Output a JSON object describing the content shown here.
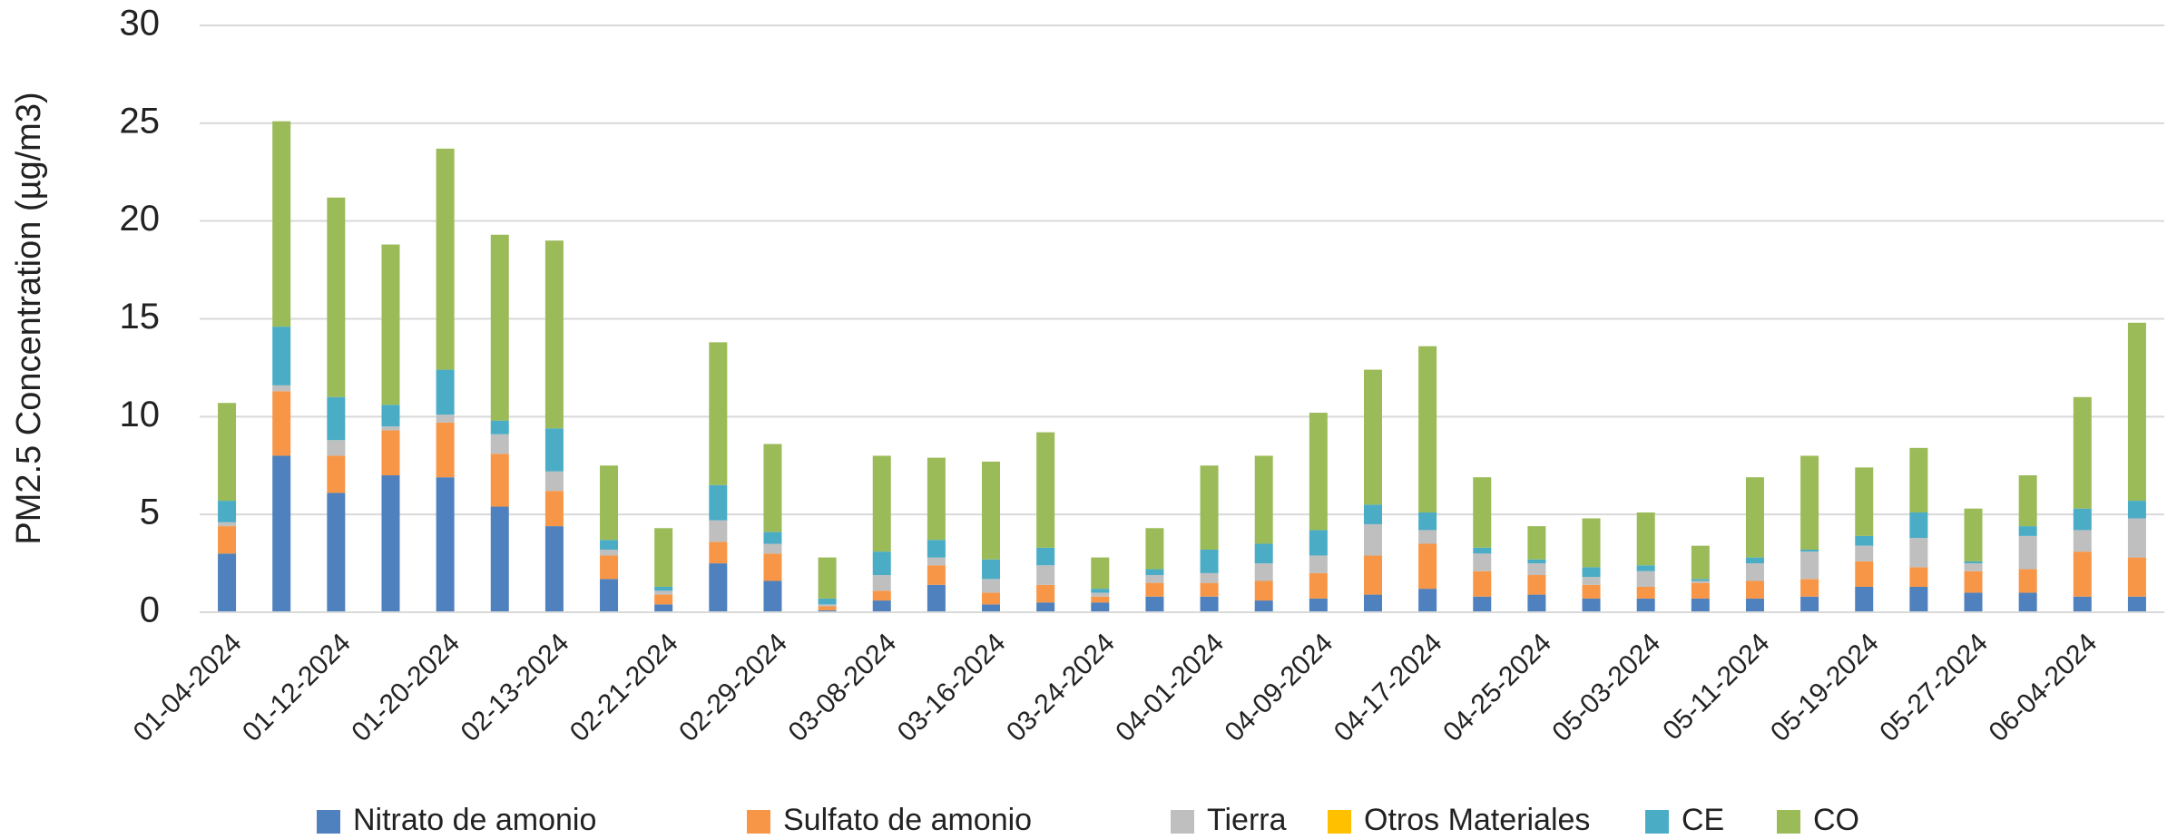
{
  "chart_data": {
    "type": "stacked_bar",
    "y_label": "PM2.5 Concentration (µg/m3)",
    "categories": [
      "01-04-2024",
      null,
      "01-12-2024",
      null,
      "01-20-2024",
      null,
      "02-13-2024",
      null,
      "02-21-2024",
      null,
      "02-29-2024",
      null,
      "03-08-2024",
      null,
      "03-16-2024",
      null,
      "03-24-2024",
      null,
      "04-01-2024",
      null,
      "04-09-2024",
      null,
      "04-17-2024",
      null,
      "04-25-2024",
      null,
      "05-03-2024",
      null,
      "05-11-2024",
      null,
      "05-19-2024",
      null,
      "05-27-2024",
      null,
      "06-04-2024",
      null
    ],
    "series": [
      {
        "name": "Nitrato de amonio",
        "color": "#4e81bd",
        "values": [
          3.0,
          8.0,
          6.1,
          7.0,
          6.9,
          5.4,
          4.4,
          1.7,
          0.4,
          2.5,
          1.6,
          0.1,
          0.6,
          1.4,
          0.4,
          0.5,
          0.5,
          0.8,
          0.8,
          0.6,
          0.7,
          0.9,
          1.2,
          0.8,
          0.9,
          0.7,
          0.7,
          0.7,
          0.7,
          0.8,
          1.3,
          1.3,
          1.0,
          1.0,
          0.8,
          0.8
        ]
      },
      {
        "name": "Sulfato de amonio",
        "color": "#f79646",
        "values": [
          1.4,
          3.3,
          1.9,
          2.3,
          2.8,
          2.7,
          1.8,
          1.2,
          0.5,
          1.1,
          1.4,
          0.2,
          0.5,
          1.0,
          0.6,
          0.9,
          0.3,
          0.7,
          0.7,
          1.0,
          1.3,
          2.0,
          2.3,
          1.3,
          1.0,
          0.7,
          0.6,
          0.8,
          0.9,
          0.9,
          1.3,
          1.0,
          1.1,
          1.2,
          2.3,
          2.0
        ]
      },
      {
        "name": "Tierra",
        "color": "#bfbfbf",
        "values": [
          0.2,
          0.3,
          0.8,
          0.2,
          0.4,
          1.0,
          1.0,
          0.3,
          0.2,
          1.1,
          0.5,
          0.1,
          0.8,
          0.4,
          0.7,
          1.0,
          0.2,
          0.4,
          0.5,
          0.9,
          0.9,
          1.6,
          0.7,
          0.9,
          0.6,
          0.4,
          0.8,
          0.1,
          0.9,
          1.4,
          0.8,
          1.5,
          0.4,
          1.7,
          1.1,
          2.0
        ]
      },
      {
        "name": "Otros Materiales",
        "color": "#ffc000",
        "values": [
          0,
          0,
          0,
          0,
          0,
          0,
          0,
          0,
          0,
          0,
          0,
          0,
          0,
          0,
          0,
          0,
          0,
          0,
          0,
          0,
          0,
          0,
          0,
          0,
          0,
          0,
          0,
          0,
          0,
          0,
          0,
          0,
          0,
          0,
          0,
          0
        ]
      },
      {
        "name": "CE",
        "color": "#4bacc6",
        "values": [
          1.1,
          3.0,
          2.2,
          1.1,
          2.3,
          0.7,
          2.2,
          0.5,
          0.2,
          1.8,
          0.6,
          0.3,
          1.2,
          0.9,
          1.0,
          0.9,
          0.2,
          0.3,
          1.2,
          1.0,
          1.3,
          1.0,
          0.9,
          0.3,
          0.2,
          0.5,
          0.3,
          0.1,
          0.3,
          0.1,
          0.5,
          1.3,
          0.1,
          0.5,
          1.1,
          0.9
        ]
      },
      {
        "name": "CO",
        "color": "#9bbb59",
        "values": [
          5.0,
          10.5,
          10.2,
          8.2,
          11.3,
          9.5,
          9.6,
          3.8,
          3.0,
          7.3,
          4.5,
          2.1,
          4.9,
          4.2,
          5.0,
          5.9,
          1.6,
          2.1,
          4.3,
          4.5,
          6.0,
          6.9,
          8.5,
          3.6,
          1.7,
          2.5,
          2.7,
          1.7,
          4.1,
          4.8,
          3.5,
          3.3,
          2.7,
          2.6,
          5.7,
          9.1
        ]
      }
    ],
    "ylim": [
      0,
      30
    ],
    "yticks": [
      0,
      5,
      10,
      15,
      20,
      25,
      30
    ],
    "grid": true
  }
}
